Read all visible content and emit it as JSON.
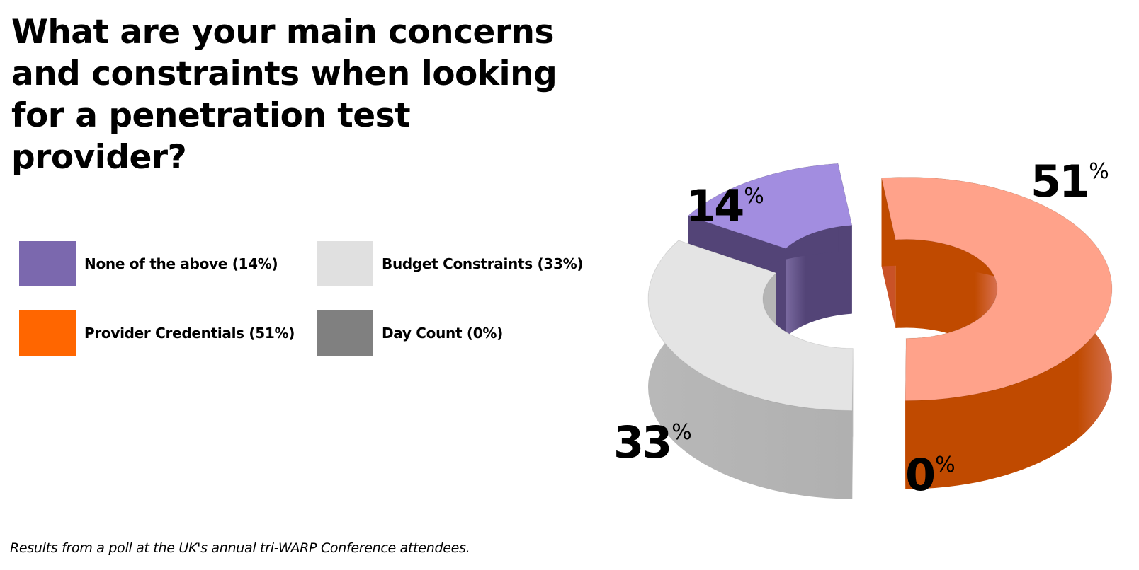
{
  "title": "What are your main concerns and constraints when looking for a penetration test provider?",
  "footnote": "Results from a poll at the UK's annual tri-WARP Conference attendees.",
  "legend": [
    {
      "label": "None of the above (14%)",
      "color": "#7B68AE"
    },
    {
      "label": "Budget Constraints (33%)",
      "color": "#E0E0E0"
    },
    {
      "label": "Provider Credentials (51%)",
      "color": "#FF6600"
    },
    {
      "label": "Day Count (0%)",
      "color": "#808080"
    }
  ],
  "chart_data": {
    "type": "pie",
    "variant": "3d-exploded-donut",
    "title": "What are your main concerns and constraints when looking for a penetration test provider?",
    "legend_position": "left",
    "slices": [
      {
        "name": "Provider Credentials",
        "value": 51,
        "label": "51",
        "unit": "%",
        "top_color": "#FFA28A",
        "side_color": "#C04A00",
        "inner_color": "#C04A00",
        "end_color": "#C95227"
      },
      {
        "name": "Day Count",
        "value": 0,
        "label": "0",
        "unit": "%",
        "top_color": "#808080",
        "side_color": "#808080"
      },
      {
        "name": "Budget Constraints",
        "value": 33,
        "label": "33",
        "unit": "%",
        "top_color": "#E4E4E4",
        "side_color": "#B5B5B5",
        "inner_color": "#C8C8C8",
        "end_color": "#B5B5B5"
      },
      {
        "name": "None of the above",
        "value": 14,
        "label": "14",
        "unit": "%",
        "top_color": "#A28DE0",
        "side_color": "#534477",
        "inner_color": "#534477",
        "end_color": "#534477"
      }
    ]
  }
}
